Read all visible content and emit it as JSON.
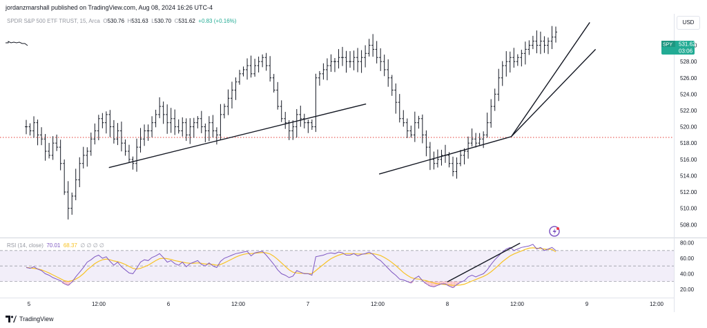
{
  "header": {
    "published_by": "jordanzmarshall published on TradingView.com, Aug 08, 2024 16:26 UTC-4"
  },
  "legend": {
    "symbol_desc": "SPDR S&P 500 ETF TRUST, 15, Arca",
    "o_label": "O",
    "o": "530.76",
    "h_label": "H",
    "h": "531.63",
    "l_label": "L",
    "l": "530.70",
    "c_label": "C",
    "c": "531.62",
    "change": "+0.83 (+0.16%)"
  },
  "currency": "USD",
  "price_tag": {
    "symbol": "SPY",
    "price": "531.62",
    "countdown": "03:06"
  },
  "rsi_legend": {
    "label": "RSI (14, close)",
    "rsi": "70.01",
    "ma": "68.37",
    "extras": "∅ ∅ ∅ ∅"
  },
  "footer": {
    "brand": "TradingView"
  },
  "colors": {
    "bar": "#131722",
    "rsi": "#7e57c2",
    "rsi_ma": "#f7c223",
    "dotted_line": "#e53935",
    "price_tag": "#22ab94"
  },
  "chart_data": [
    {
      "type": "ohlc",
      "symbol": "SPY",
      "interval": "15",
      "x_tick_labels": [
        "5",
        "12:00",
        "6",
        "12:00",
        "7",
        "12:00",
        "8",
        "12:00",
        "9",
        "12:00"
      ],
      "y_tick_labels": [
        "508.00",
        "510.00",
        "512.00",
        "514.00",
        "516.00",
        "518.00",
        "520.00",
        "522.00",
        "524.00",
        "526.00",
        "528.00",
        "530.00"
      ],
      "ylim": [
        506.5,
        532.5
      ],
      "last_price": 531.62,
      "reference_line": 518.7,
      "close_series": [
        520.0,
        519.5,
        520.5,
        519.0,
        518.5,
        517.0,
        516.5,
        518.0,
        517.5,
        515.5,
        512.0,
        510.0,
        511.5,
        513.5,
        515.5,
        516.5,
        517.0,
        518.5,
        519.5,
        521.0,
        520.5,
        521.5,
        520.0,
        518.5,
        519.5,
        518.0,
        517.0,
        516.0,
        515.5,
        517.5,
        518.5,
        519.5,
        519.5,
        520.5,
        521.5,
        522.5,
        521.5,
        520.5,
        521.0,
        520.0,
        519.5,
        520.5,
        519.0,
        520.0,
        520.5,
        521.0,
        520.0,
        519.5,
        520.5,
        519.5,
        519.0,
        521.5,
        522.5,
        523.5,
        524.5,
        525.5,
        526.5,
        527.0,
        527.5,
        526.5,
        527.5,
        528.0,
        528.5,
        527.5,
        526.0,
        524.5,
        522.5,
        521.0,
        520.5,
        519.5,
        520.0,
        521.5,
        521.0,
        520.5,
        520.5,
        520.0,
        526.0,
        526.5,
        527.0,
        527.5,
        528.0,
        528.0,
        528.5,
        528.5,
        528.0,
        528.0,
        528.5,
        528.0,
        528.5,
        529.0,
        530.0,
        529.5,
        528.5,
        528.0,
        527.0,
        526.0,
        524.5,
        523.0,
        521.0,
        520.5,
        519.5,
        519.0,
        520.5,
        521.0,
        519.0,
        517.5,
        516.0,
        515.5,
        516.0,
        516.5,
        516.5,
        515.5,
        514.5,
        515.5,
        516.5,
        517.0,
        518.0,
        518.5,
        518.0,
        518.5,
        519.0,
        520.5,
        522.5,
        524.0,
        526.0,
        527.5,
        528.0,
        528.5,
        528.0,
        528.5,
        529.0,
        529.5,
        530.0,
        530.5,
        530.0,
        530.5,
        530.0,
        530.5,
        531.0,
        531.62
      ],
      "trendlines": [
        {
          "from": [
            "Aug 05 13:45",
            515.0
          ],
          "to": [
            "Aug 07 10:00",
            522.8
          ]
        },
        {
          "from": [
            "Aug 07 12:15",
            514.2
          ],
          "to": [
            "Aug 08 11:00",
            518.8
          ]
        },
        {
          "from": [
            "Aug 08 11:00",
            518.8
          ],
          "to": [
            "Aug 09 00:30",
            532.8
          ]
        },
        {
          "from": [
            "Aug 08 11:00",
            518.8
          ],
          "to": [
            "Aug 09 01:30",
            529.5
          ]
        }
      ]
    },
    {
      "type": "line",
      "name": "RSI (14, close)",
      "y_tick_labels": [
        "20.00",
        "40.00",
        "60.00",
        "80.00"
      ],
      "ylim": [
        10,
        85
      ],
      "bands": [
        30,
        50,
        70
      ],
      "series": [
        {
          "name": "RSI",
          "values": [
            48,
            47,
            49,
            46,
            44,
            40,
            38,
            35,
            33,
            31,
            27,
            25,
            29,
            36,
            42,
            48,
            55,
            58,
            62,
            64,
            60,
            62,
            56,
            51,
            55,
            49,
            45,
            41,
            40,
            47,
            55,
            58,
            57,
            61,
            63,
            66,
            61,
            55,
            57,
            53,
            51,
            55,
            49,
            53,
            55,
            57,
            52,
            50,
            54,
            50,
            48,
            56,
            60,
            62,
            64,
            66,
            67,
            68,
            69,
            63,
            67,
            68,
            69,
            64,
            58,
            52,
            45,
            40,
            38,
            35,
            37,
            44,
            42,
            40,
            40,
            38,
            62,
            63,
            64,
            66,
            67,
            66,
            68,
            67,
            64,
            64,
            66,
            63,
            65,
            66,
            68,
            65,
            60,
            57,
            52,
            47,
            42,
            38,
            33,
            32,
            30,
            28,
            34,
            37,
            31,
            27,
            24,
            23,
            25,
            27,
            27,
            24,
            22,
            26,
            29,
            31,
            36,
            38,
            36,
            38,
            40,
            45,
            52,
            58,
            63,
            68,
            72,
            74,
            70,
            72,
            74,
            75,
            76,
            78,
            72,
            74,
            70,
            72,
            74,
            70.01
          ]
        },
        {
          "name": "RSI MA",
          "values": [
            48,
            47.5,
            47,
            46.2,
            45,
            43,
            41,
            38.5,
            36,
            33.5,
            31,
            30,
            31,
            33,
            36,
            40,
            45,
            49,
            53,
            56,
            58,
            59,
            58,
            56.5,
            55.5,
            54,
            52,
            49.5,
            47,
            46,
            47,
            49,
            51,
            54,
            57,
            59.5,
            60,
            59.5,
            58.5,
            57,
            56,
            55,
            54,
            53.5,
            53.5,
            54,
            53.5,
            52.5,
            52.5,
            52,
            51,
            52,
            54,
            56.5,
            59,
            61.5,
            63.5,
            65,
            66,
            66,
            66.5,
            67,
            67.5,
            67,
            65.5,
            62.5,
            58.5,
            54,
            49.5,
            45,
            42,
            41,
            40.5,
            40.5,
            40,
            40,
            44,
            48,
            52,
            56,
            59.5,
            62,
            64,
            65.5,
            66,
            66,
            66,
            65.5,
            65.5,
            65.5,
            66,
            66,
            65,
            63.5,
            61,
            58,
            54.5,
            50.5,
            46,
            41.5,
            38,
            35,
            33.5,
            33,
            32,
            31,
            29.5,
            28,
            27,
            26.5,
            26,
            25.5,
            25,
            25,
            25.5,
            26.5,
            28.5,
            30.5,
            32.5,
            34.5,
            36.5,
            39,
            42.5,
            46.5,
            51,
            55.5,
            59.5,
            63,
            65.5,
            67.5,
            69.5,
            71.5,
            73,
            73.5,
            73,
            72.5,
            72,
            71.5,
            71.5,
            68.37
          ]
        }
      ],
      "trendline": {
        "from": [
          "Aug 08 00:00",
          29.5
        ],
        "to": [
          "Aug 08 12:30",
          79.5
        ]
      }
    }
  ]
}
